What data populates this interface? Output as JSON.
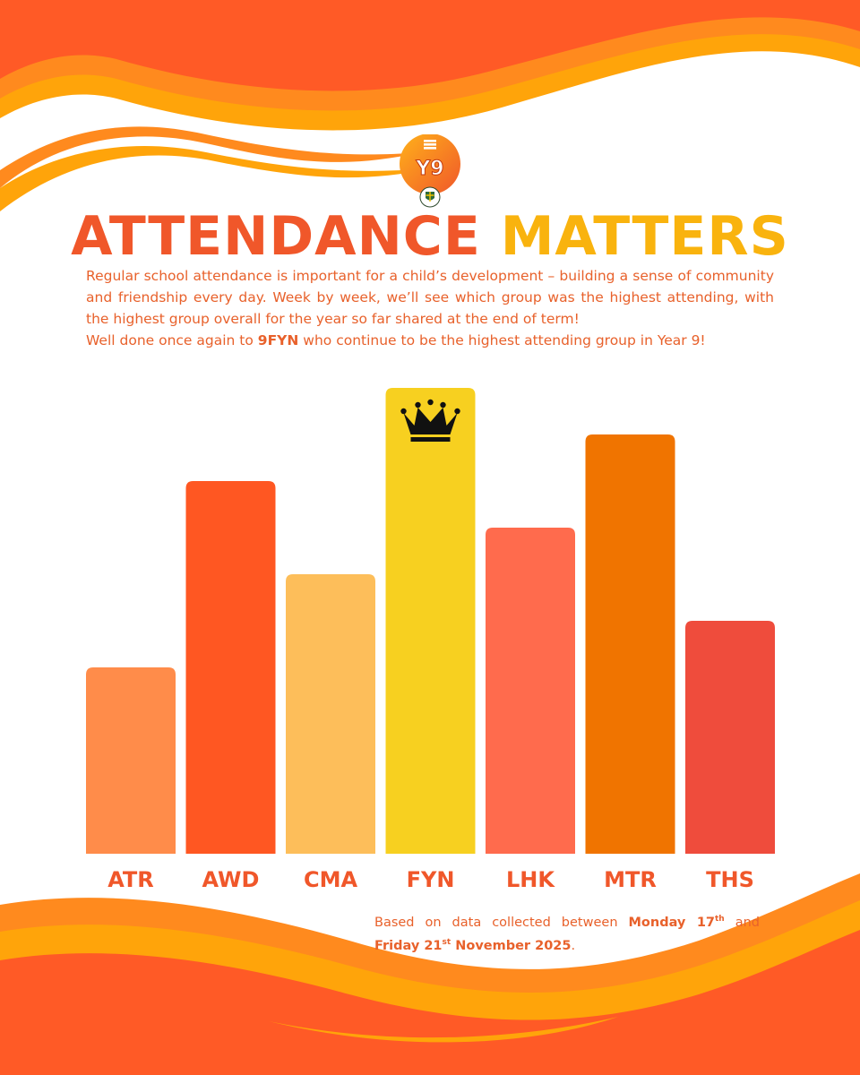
{
  "poster": {
    "title_part1": "ATTENDANCE",
    "title_part2": "MATTERS",
    "logo_text": "Y9",
    "intro_paragraph": "Regular school attendance is important for a child’s development – building a sense of community and friendship every day. Week by week, we’ll see which group was the highest attending, with the highest group overall for the year so far shared at the end of term!",
    "congrats_prefix": "Well done once again to ",
    "congrats_group": "9FYN",
    "congrats_suffix": " who continue to be the highest attending group in Year 9!",
    "footnote": {
      "prefix": "Based on data collected between ",
      "start_day": "Monday 17",
      "start_suffix": "th",
      "middle": " and ",
      "end_day": "Friday 21",
      "end_suffix": "st",
      "end_rest": " November 2025",
      "end_punct": "."
    },
    "colors": {
      "orange": "#F0572A",
      "gold": "#F9B30E",
      "text": "#E8612B"
    }
  },
  "chart_data": {
    "type": "bar",
    "title": "",
    "xlabel": "",
    "ylabel": "",
    "categories": [
      "ATR",
      "AWD",
      "CMA",
      "FYN",
      "LHK",
      "MTR",
      "THS"
    ],
    "values": [
      4,
      8,
      6,
      10,
      7,
      9,
      5
    ],
    "ylim": [
      0,
      10
    ],
    "value_note": "relative bar heights; no axis shown",
    "bar_colors": [
      "#FF8C4A",
      "#FF5722",
      "#FDBE5A",
      "#F7D020",
      "#FF6B4D",
      "#F07400",
      "#EF4C3C"
    ],
    "highlight": "FYN",
    "highlight_icon": "crown-icon",
    "grid": false,
    "legend": "none"
  }
}
